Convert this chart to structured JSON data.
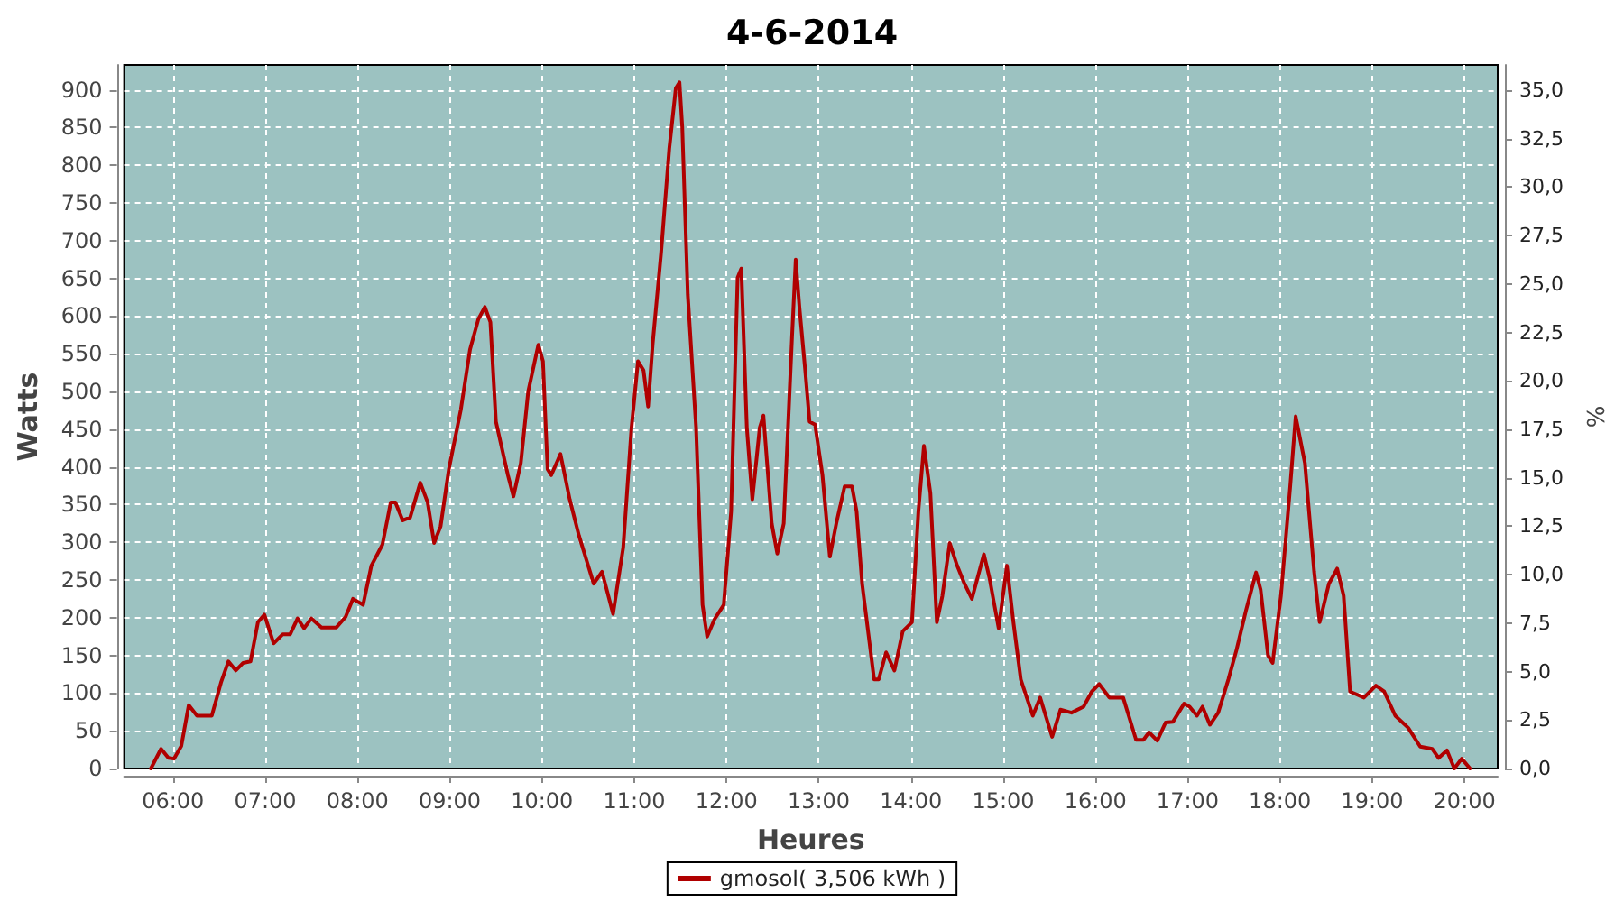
{
  "chart_data": {
    "type": "line",
    "title": "4-6-2014",
    "xlabel": "Heures",
    "ylabel": "Watts",
    "y2label": "%",
    "x": [
      5.76,
      5.87,
      5.95,
      6.01,
      6.09,
      6.17,
      6.26,
      6.42,
      6.52,
      6.6,
      6.68,
      6.76,
      6.84,
      6.92,
      6.99,
      7.09,
      7.19,
      7.27,
      7.35,
      7.42,
      7.5,
      7.61,
      7.77,
      7.87,
      7.95,
      8.06,
      8.15,
      8.27,
      8.36,
      8.41,
      8.49,
      8.57,
      8.68,
      8.76,
      8.83,
      8.9,
      8.99,
      9.12,
      9.22,
      9.31,
      9.38,
      9.44,
      9.5,
      9.63,
      9.69,
      9.77,
      9.85,
      9.96,
      10.01,
      10.06,
      10.1,
      10.2,
      10.3,
      10.4,
      10.56,
      10.65,
      10.77,
      10.88,
      10.97,
      11.04,
      11.1,
      11.15,
      11.2,
      11.29,
      11.38,
      11.45,
      11.49,
      11.52,
      11.58,
      11.67,
      11.74,
      11.79,
      11.87,
      11.97,
      12.05,
      12.12,
      12.16,
      12.22,
      12.28,
      12.36,
      12.4,
      12.49,
      12.55,
      12.62,
      12.71,
      12.75,
      12.79,
      12.85,
      12.9,
      12.96,
      13.04,
      13.12,
      13.19,
      13.28,
      13.36,
      13.41,
      13.47,
      13.6,
      13.65,
      13.73,
      13.82,
      13.91,
      14.01,
      14.08,
      14.14,
      14.21,
      14.28,
      14.34,
      14.42,
      14.5,
      14.58,
      14.66,
      14.79,
      14.85,
      14.95,
      15.04,
      15.11,
      15.19,
      15.32,
      15.4,
      15.53,
      15.62,
      15.74,
      15.87,
      15.96,
      16.04,
      16.15,
      16.3,
      16.44,
      16.52,
      16.58,
      16.67,
      16.76,
      16.84,
      16.96,
      17.02,
      17.1,
      17.16,
      17.24,
      17.33,
      17.44,
      17.53,
      17.63,
      17.74,
      17.79,
      17.87,
      17.92,
      18.01,
      18.11,
      18.17,
      18.27,
      18.37,
      18.43,
      18.53,
      18.62,
      18.69,
      18.76,
      18.91,
      19.04,
      19.13,
      19.25,
      19.39,
      19.52,
      19.65,
      19.72,
      19.81,
      19.89,
      19.97,
      20.06
    ],
    "series": [
      {
        "name": "gmosol( 3,506 kWh )",
        "color": "#b00000",
        "values": [
          0,
          26,
          14,
          13,
          30,
          84,
          70,
          70,
          114,
          142,
          130,
          140,
          142,
          194,
          204,
          166,
          178,
          178,
          199,
          186,
          199,
          187,
          187,
          201,
          225,
          217,
          269,
          297,
          353,
          353,
          329,
          333,
          379,
          353,
          299,
          321,
          397,
          476,
          556,
          596,
          612,
          592,
          460,
          389,
          361,
          405,
          500,
          562,
          540,
          397,
          389,
          417,
          357,
          309,
          245,
          261,
          205,
          293,
          452,
          540,
          528,
          480,
          564,
          683,
          823,
          902,
          910,
          851,
          628,
          452,
          217,
          175,
          198,
          217,
          341,
          651,
          663,
          452,
          357,
          452,
          468,
          325,
          285,
          325,
          572,
          675,
          612,
          532,
          460,
          456,
          389,
          281,
          325,
          374,
          374,
          341,
          245,
          118,
          118,
          154,
          130,
          182,
          194,
          341,
          428,
          365,
          194,
          229,
          299,
          269,
          245,
          225,
          284,
          253,
          186,
          269,
          194,
          118,
          70,
          94,
          42,
          78,
          74,
          82,
          102,
          112,
          94,
          94,
          38,
          38,
          48,
          37,
          61,
          62,
          86,
          82,
          70,
          82,
          58,
          74,
          118,
          158,
          209,
          260,
          237,
          150,
          140,
          229,
          373,
          467,
          405,
          261,
          194,
          245,
          265,
          229,
          102,
          94,
          110,
          102,
          70,
          54,
          29,
          26,
          14,
          24,
          0,
          13,
          0
        ]
      }
    ],
    "xlim": [
      5.47,
      20.36
    ],
    "xticks": [
      {
        "value": 6,
        "label": "06:00"
      },
      {
        "value": 7,
        "label": "07:00"
      },
      {
        "value": 8,
        "label": "08:00"
      },
      {
        "value": 9,
        "label": "09:00"
      },
      {
        "value": 10,
        "label": "10:00"
      },
      {
        "value": 11,
        "label": "11:00"
      },
      {
        "value": 12,
        "label": "12:00"
      },
      {
        "value": 13,
        "label": "13:00"
      },
      {
        "value": 14,
        "label": "14:00"
      },
      {
        "value": 15,
        "label": "15:00"
      },
      {
        "value": 16,
        "label": "16:00"
      },
      {
        "value": 17,
        "label": "17:00"
      },
      {
        "value": 18,
        "label": "18:00"
      },
      {
        "value": 19,
        "label": "19:00"
      },
      {
        "value": 20,
        "label": "20:00"
      }
    ],
    "ylim": [
      0,
      933
    ],
    "yticks": [
      0,
      50,
      100,
      150,
      200,
      250,
      300,
      350,
      400,
      450,
      500,
      550,
      600,
      650,
      700,
      750,
      800,
      850,
      900
    ],
    "y2lim": [
      0,
      36.3
    ],
    "y2ticks": [
      {
        "value": 0,
        "label": "0,0"
      },
      {
        "value": 2.5,
        "label": "2,5"
      },
      {
        "value": 5,
        "label": "5,0"
      },
      {
        "value": 7.5,
        "label": "7,5"
      },
      {
        "value": 10,
        "label": "10,0"
      },
      {
        "value": 12.5,
        "label": "12,5"
      },
      {
        "value": 15,
        "label": "15,0"
      },
      {
        "value": 17.5,
        "label": "17,5"
      },
      {
        "value": 20,
        "label": "20,0"
      },
      {
        "value": 22.5,
        "label": "22,5"
      },
      {
        "value": 25,
        "label": "25,0"
      },
      {
        "value": 27.5,
        "label": "27,5"
      },
      {
        "value": 30,
        "label": "30,0"
      },
      {
        "value": 32.5,
        "label": "32,5"
      },
      {
        "value": 35,
        "label": "35,0"
      }
    ],
    "grid": true,
    "legend": "bottom",
    "marker": "none",
    "line_style": "solid"
  }
}
